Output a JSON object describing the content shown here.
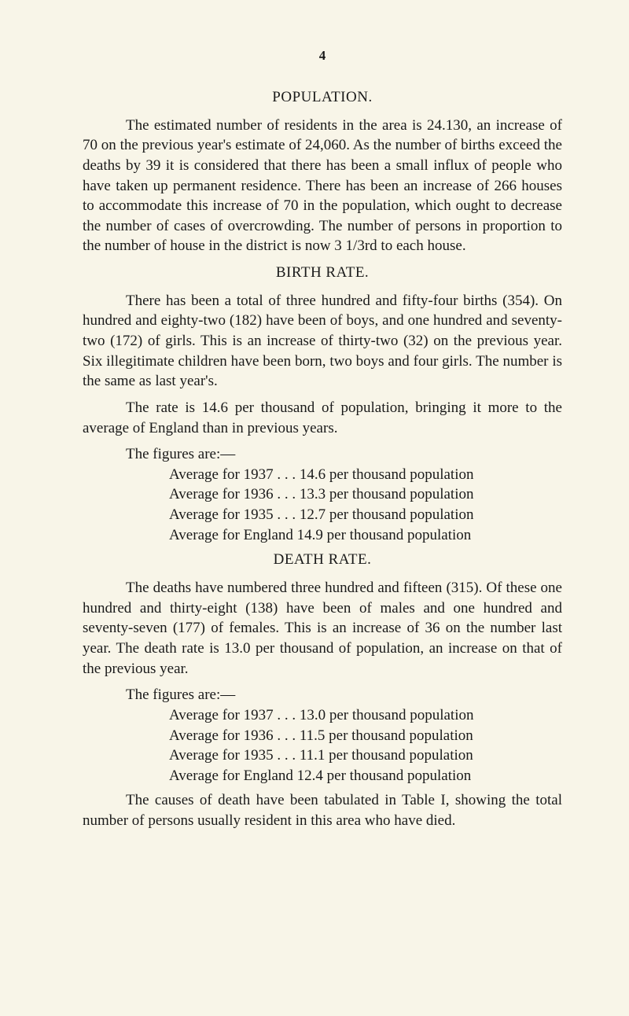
{
  "page_number": "4",
  "sections": {
    "population": {
      "title": "POPULATION.",
      "paragraph": "The estimated number of residents in the area is 24.130, an increase of 70 on the previous year's estimate of 24,060. As the number of births exceed the deaths by 39 it is considered that there has been a small influx of people who have taken up permanent residence. There has been an increase of 266 houses to accommodate this increase of 70 in the population, which ought to decrease the number of cases of overcrowding. The number of persons in proportion to the number of house in the district is now 3 1/3rd to each house."
    },
    "birth_rate": {
      "title": "BIRTH RATE.",
      "para1": "There has been a total of three hundred and fifty-four births (354). On hundred and eighty-two (182) have been of boys, and one hundred and seventy-two (172) of girls. This is an increase of thirty-two (32) on the previous year. Six illegitimate children have been born, two boys and four girls. The number is the same as last year's.",
      "para2": "The rate is 14.6 per thousand of population, bringing it more to the average of England than in previous years.",
      "figures_intro": "The figures are:—",
      "figures": {
        "r1": "Average for 1937 . . . 14.6 per thousand population",
        "r2": "Average for 1936 . . . 13.3 per thousand population",
        "r3": "Average for 1935 . . . 12.7 per thousand population",
        "r4": "Average for England 14.9 per thousand population"
      }
    },
    "death_rate": {
      "title": "DEATH RATE.",
      "para1": "The deaths have numbered three hundred and fifteen (315). Of these one hundred and thirty-eight (138) have been of males and one hundred and seventy-seven (177) of females. This is an increase of 36 on the number last year. The death rate is 13.0 per thousand of population, an increase on that of the previous year.",
      "figures_intro": "The figures are:—",
      "figures": {
        "r1": "Average for 1937 . . . 13.0 per thousand population",
        "r2": "Average for 1936 . . . 11.5 per thousand population",
        "r3": "Average for 1935 . . . 11.1 per thousand population",
        "r4": "Average for England 12.4 per thousand population"
      },
      "para2": "The causes of death have been tabulated in Table I, showing the total number of persons usually resident in this area who have died."
    }
  }
}
